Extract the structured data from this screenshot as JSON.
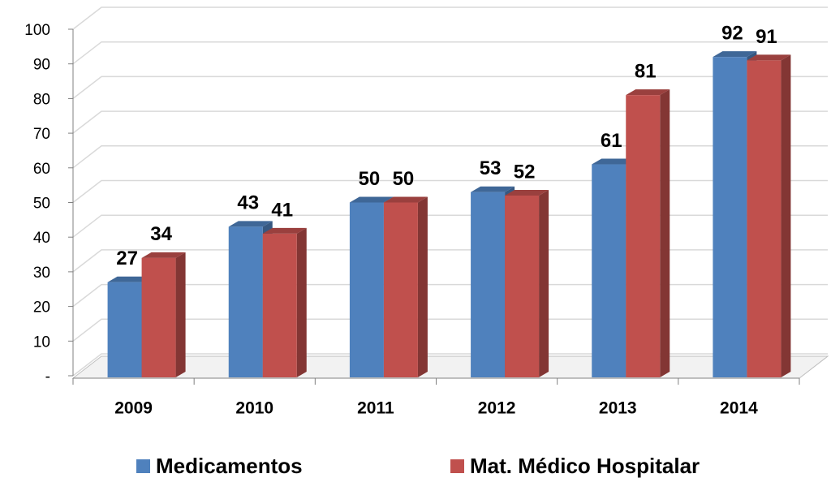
{
  "chart_data": {
    "type": "bar3d",
    "categories": [
      "2009",
      "2010",
      "2011",
      "2012",
      "2013",
      "2014"
    ],
    "series": [
      {
        "name": "Medicamentos",
        "color": "#4f81bd",
        "values": [
          27,
          43,
          50,
          53,
          61,
          92
        ]
      },
      {
        "name": "Mat. Médico Hospitalar",
        "color": "#c0504d",
        "values": [
          34,
          41,
          50,
          52,
          81,
          91
        ]
      }
    ],
    "ylim": [
      0,
      100
    ],
    "yticks": [
      {
        "value": 0,
        "label": "-"
      },
      10,
      20,
      30,
      40,
      50,
      60,
      70,
      80,
      90,
      100
    ],
    "grid": true,
    "legend": "bottom"
  }
}
